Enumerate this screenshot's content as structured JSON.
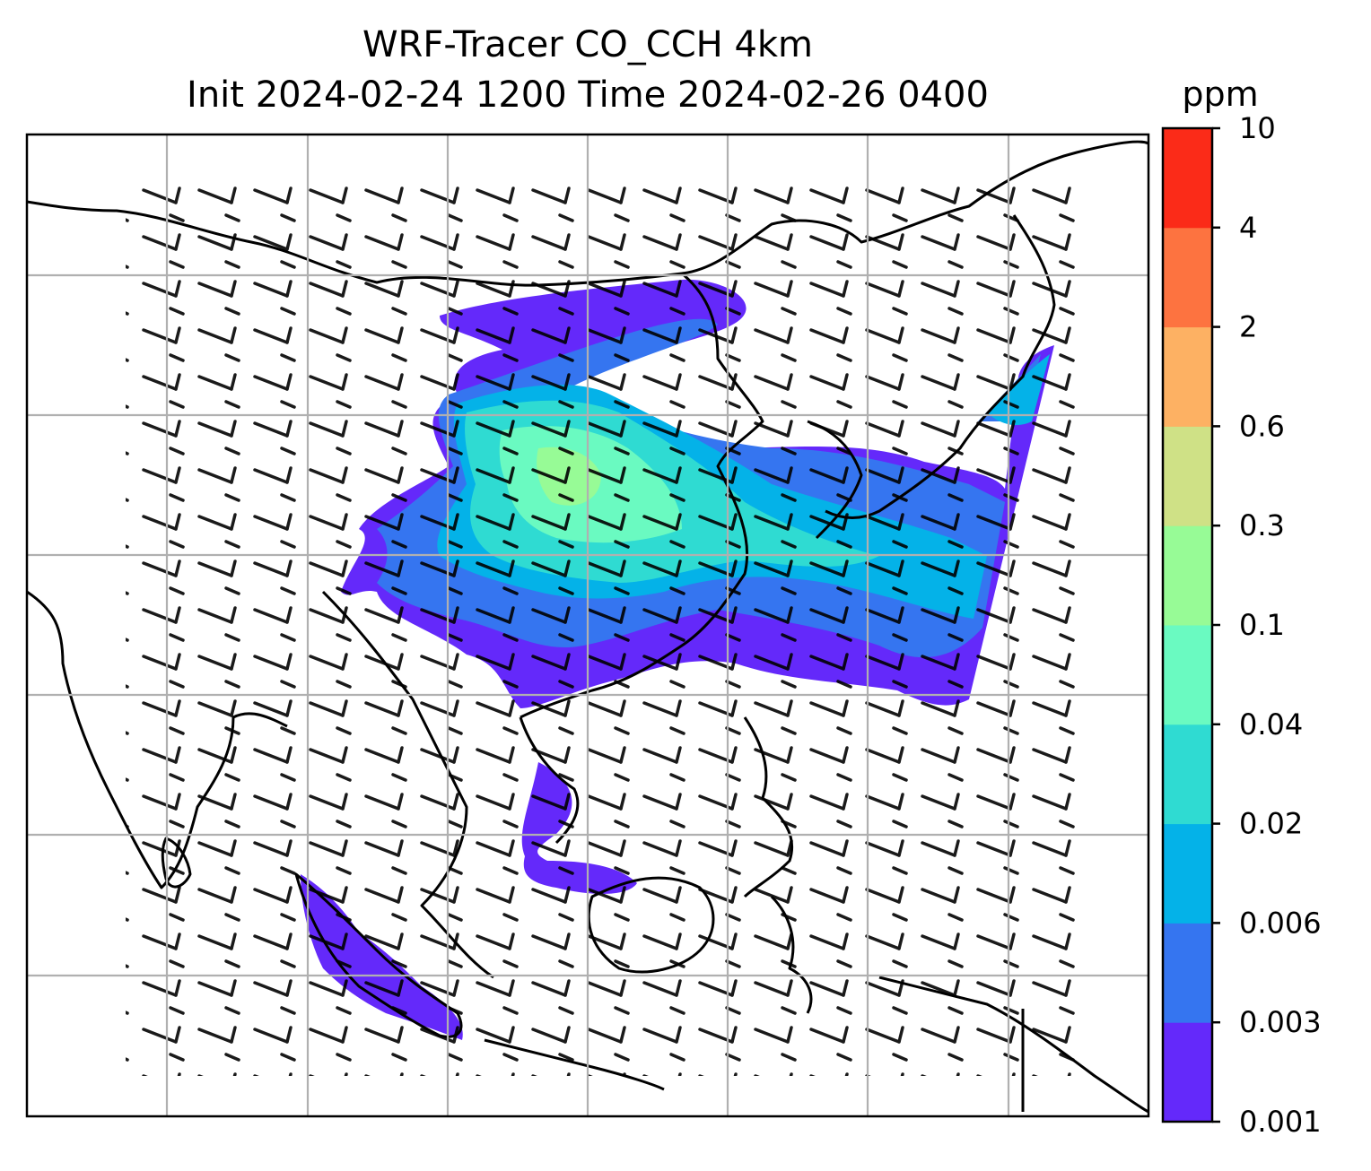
{
  "title": {
    "line1": "WRF-Tracer CO_CCH 4km",
    "line2": "Init 2024-02-24 1200 Time 2024-02-26 0400"
  },
  "colorbar": {
    "unit": "ppm",
    "ticks": [
      "0.001",
      "0.003",
      "0.006",
      "0.02",
      "0.04",
      "0.1",
      "0.3",
      "0.6",
      "2",
      "4",
      "10"
    ],
    "colors": [
      "#6429fa",
      "#3575f0",
      "#04b2e8",
      "#2fdbd2",
      "#6afac1",
      "#97fb96",
      "#cfe186",
      "#fdb163",
      "#fd7340",
      "#fb2b18"
    ]
  },
  "map": {
    "gridlines": true,
    "grid_color": "#b0b0b0",
    "coastline_color": "#000000",
    "layers": [
      "tracer-concentration-fill",
      "wind-barbs",
      "coastlines",
      "gridlines"
    ]
  }
}
